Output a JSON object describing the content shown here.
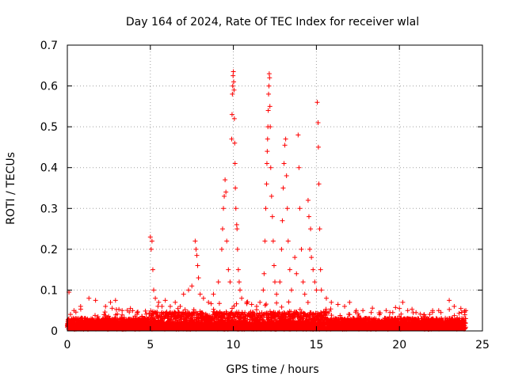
{
  "chart_data": {
    "type": "scatter",
    "title": "Day 164 of 2024, Rate Of TEC Index for receiver wlal",
    "xlabel": "GPS time / hours",
    "ylabel": "ROTI / TECUs",
    "xlim": [
      0,
      25
    ],
    "ylim": [
      0,
      0.7
    ],
    "x_ticks": [
      0,
      5,
      10,
      15,
      20,
      25
    ],
    "y_ticks": [
      0,
      0.1,
      0.2,
      0.3,
      0.4,
      0.5,
      0.6,
      0.7
    ],
    "x_tick_labels": [
      "0",
      "5",
      "10",
      "15",
      "20",
      "25"
    ],
    "y_tick_labels": [
      "0",
      "0.1",
      "0.2",
      "0.3",
      "0.4",
      "0.5",
      "0.6",
      "0.7"
    ],
    "grid": true,
    "marker": "+",
    "marker_color": "#ff0000",
    "series": [
      {
        "name": "ROTI",
        "points": [
          [
            0.1,
            0.095
          ],
          [
            0.4,
            0.05
          ],
          [
            0.8,
            0.06
          ],
          [
            1.3,
            0.08
          ],
          [
            1.7,
            0.075
          ],
          [
            2.3,
            0.06
          ],
          [
            2.6,
            0.07
          ],
          [
            2.9,
            0.075
          ],
          [
            3.3,
            0.05
          ],
          [
            3.8,
            0.055
          ],
          [
            4.2,
            0.045
          ],
          [
            4.5,
            0.035
          ],
          [
            5.0,
            0.23
          ],
          [
            5.05,
            0.2
          ],
          [
            5.1,
            0.22
          ],
          [
            5.15,
            0.15
          ],
          [
            5.2,
            0.1
          ],
          [
            5.3,
            0.08
          ],
          [
            5.5,
            0.07
          ],
          [
            5.7,
            0.06
          ],
          [
            5.9,
            0.075
          ],
          [
            6.2,
            0.06
          ],
          [
            6.5,
            0.07
          ],
          [
            6.8,
            0.06
          ],
          [
            7.0,
            0.09
          ],
          [
            7.3,
            0.1
          ],
          [
            7.5,
            0.11
          ],
          [
            7.7,
            0.22
          ],
          [
            7.75,
            0.2
          ],
          [
            7.8,
            0.185
          ],
          [
            7.85,
            0.16
          ],
          [
            7.9,
            0.13
          ],
          [
            8.0,
            0.09
          ],
          [
            8.2,
            0.08
          ],
          [
            8.5,
            0.07
          ],
          [
            8.8,
            0.09
          ],
          [
            9.1,
            0.12
          ],
          [
            9.3,
            0.2
          ],
          [
            9.35,
            0.25
          ],
          [
            9.4,
            0.3
          ],
          [
            9.45,
            0.33
          ],
          [
            9.5,
            0.37
          ],
          [
            9.55,
            0.34
          ],
          [
            9.6,
            0.22
          ],
          [
            9.7,
            0.15
          ],
          [
            9.8,
            0.12
          ],
          [
            9.9,
            0.47
          ],
          [
            9.92,
            0.53
          ],
          [
            9.94,
            0.58
          ],
          [
            9.96,
            0.6
          ],
          [
            9.98,
            0.625
          ],
          [
            10.0,
            0.635
          ],
          [
            10.02,
            0.61
          ],
          [
            10.04,
            0.59
          ],
          [
            10.06,
            0.52
          ],
          [
            10.08,
            0.46
          ],
          [
            10.1,
            0.41
          ],
          [
            10.12,
            0.35
          ],
          [
            10.15,
            0.3
          ],
          [
            10.2,
            0.26
          ],
          [
            10.22,
            0.25
          ],
          [
            10.25,
            0.2
          ],
          [
            10.3,
            0.15
          ],
          [
            10.35,
            0.12
          ],
          [
            10.4,
            0.1
          ],
          [
            10.5,
            0.08
          ],
          [
            10.8,
            0.07
          ],
          [
            11.1,
            0.065
          ],
          [
            11.4,
            0.06
          ],
          [
            11.6,
            0.07
          ],
          [
            11.8,
            0.1
          ],
          [
            11.85,
            0.14
          ],
          [
            11.9,
            0.22
          ],
          [
            11.95,
            0.3
          ],
          [
            12.0,
            0.36
          ],
          [
            12.02,
            0.41
          ],
          [
            12.04,
            0.44
          ],
          [
            12.06,
            0.47
          ],
          [
            12.08,
            0.5
          ],
          [
            12.1,
            0.54
          ],
          [
            12.12,
            0.58
          ],
          [
            12.14,
            0.6
          ],
          [
            12.16,
            0.63
          ],
          [
            12.18,
            0.62
          ],
          [
            12.2,
            0.55
          ],
          [
            12.22,
            0.5
          ],
          [
            12.25,
            0.4
          ],
          [
            12.3,
            0.33
          ],
          [
            12.35,
            0.28
          ],
          [
            12.4,
            0.22
          ],
          [
            12.45,
            0.16
          ],
          [
            12.5,
            0.12
          ],
          [
            12.6,
            0.09
          ],
          [
            12.8,
            0.12
          ],
          [
            12.9,
            0.2
          ],
          [
            12.95,
            0.27
          ],
          [
            13.0,
            0.35
          ],
          [
            13.05,
            0.41
          ],
          [
            13.1,
            0.455
          ],
          [
            13.15,
            0.47
          ],
          [
            13.2,
            0.38
          ],
          [
            13.25,
            0.3
          ],
          [
            13.3,
            0.22
          ],
          [
            13.4,
            0.15
          ],
          [
            13.5,
            0.1
          ],
          [
            13.7,
            0.18
          ],
          [
            13.8,
            0.14
          ],
          [
            13.9,
            0.48
          ],
          [
            13.95,
            0.4
          ],
          [
            14.0,
            0.3
          ],
          [
            14.1,
            0.2
          ],
          [
            14.2,
            0.12
          ],
          [
            14.3,
            0.09
          ],
          [
            14.5,
            0.32
          ],
          [
            14.55,
            0.28
          ],
          [
            14.6,
            0.2
          ],
          [
            14.65,
            0.25
          ],
          [
            14.7,
            0.18
          ],
          [
            14.8,
            0.15
          ],
          [
            14.9,
            0.12
          ],
          [
            15.0,
            0.1
          ],
          [
            15.05,
            0.56
          ],
          [
            15.1,
            0.51
          ],
          [
            15.12,
            0.45
          ],
          [
            15.15,
            0.36
          ],
          [
            15.2,
            0.25
          ],
          [
            15.25,
            0.15
          ],
          [
            15.3,
            0.1
          ],
          [
            15.6,
            0.08
          ],
          [
            15.9,
            0.07
          ],
          [
            16.3,
            0.065
          ],
          [
            16.7,
            0.06
          ],
          [
            17.0,
            0.07
          ],
          [
            17.4,
            0.05
          ],
          [
            17.8,
            0.05
          ],
          [
            18.3,
            0.045
          ],
          [
            18.8,
            0.04
          ],
          [
            19.2,
            0.05
          ],
          [
            19.6,
            0.045
          ],
          [
            20.0,
            0.055
          ],
          [
            20.2,
            0.07
          ],
          [
            20.5,
            0.05
          ],
          [
            21.0,
            0.045
          ],
          [
            21.5,
            0.04
          ],
          [
            22.0,
            0.05
          ],
          [
            22.5,
            0.045
          ],
          [
            23.0,
            0.075
          ],
          [
            23.3,
            0.06
          ],
          [
            23.7,
            0.055
          ],
          [
            24.0,
            0.05
          ]
        ]
      }
    ]
  }
}
